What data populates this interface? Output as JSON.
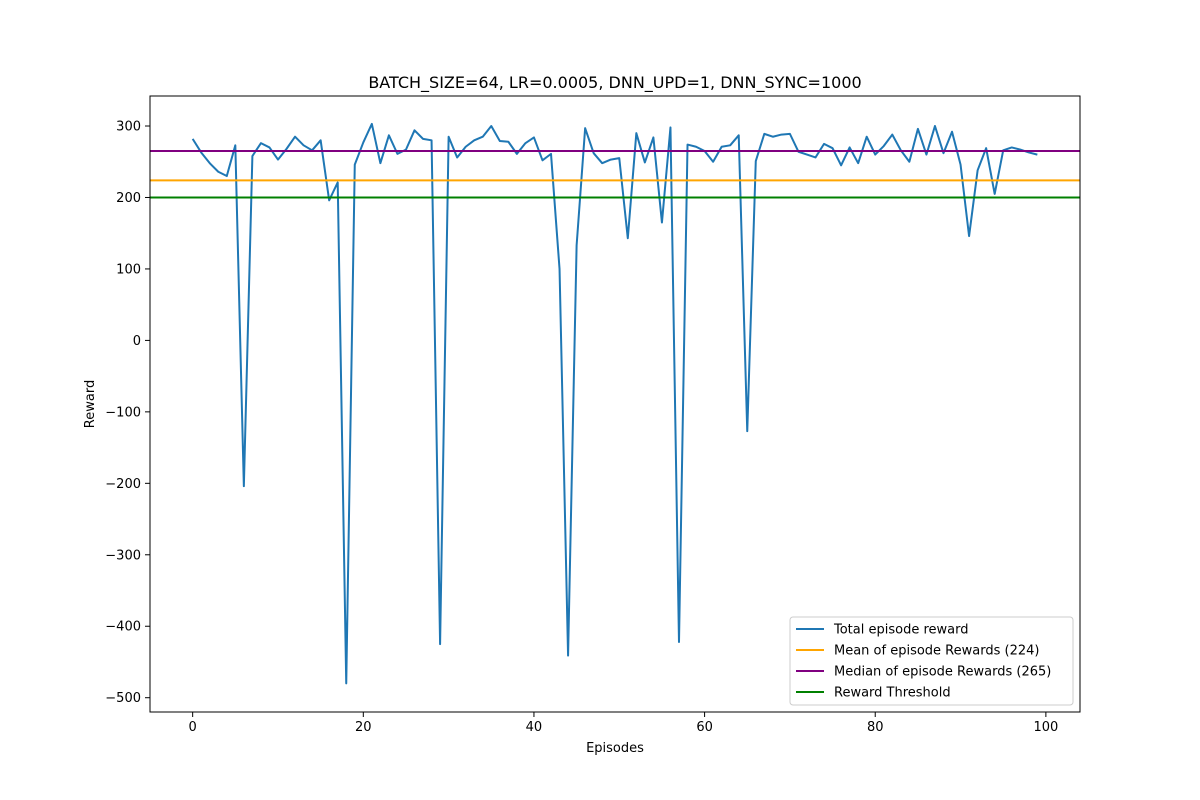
{
  "chart_data": {
    "type": "line",
    "title": "BATCH_SIZE=64, LR=0.0005, DNN_UPD=1, DNN_SYNC=1000",
    "xlabel": "Episodes",
    "ylabel": "Reward",
    "xlim": [
      -5,
      104
    ],
    "ylim": [
      -520,
      342
    ],
    "xticks": [
      0,
      20,
      40,
      60,
      80,
      100
    ],
    "yticks": [
      -500,
      -400,
      -300,
      -200,
      -100,
      0,
      100,
      200,
      300
    ],
    "grid": false,
    "legend_position": "bottom-right",
    "series": [
      {
        "name": "Total episode reward",
        "color": "#1f77b4",
        "x": [
          0,
          1,
          2,
          3,
          4,
          5,
          6,
          7,
          8,
          9,
          10,
          11,
          12,
          13,
          14,
          15,
          16,
          17,
          18,
          19,
          20,
          21,
          22,
          23,
          24,
          25,
          26,
          27,
          28,
          29,
          30,
          31,
          32,
          33,
          34,
          35,
          36,
          37,
          38,
          39,
          40,
          41,
          42,
          43,
          44,
          45,
          46,
          47,
          48,
          49,
          50,
          51,
          52,
          53,
          54,
          55,
          56,
          57,
          58,
          59,
          60,
          61,
          62,
          63,
          64,
          65,
          66,
          67,
          68,
          69,
          70,
          71,
          72,
          73,
          74,
          75,
          76,
          77,
          78,
          79,
          80,
          81,
          82,
          83,
          84,
          85,
          86,
          87,
          88,
          89,
          90,
          91,
          92,
          93,
          94,
          95,
          96,
          97,
          98,
          99
        ],
        "y": [
          282,
          263,
          248,
          236,
          230,
          273,
          -204,
          258,
          276,
          270,
          253,
          268,
          285,
          273,
          266,
          280,
          196,
          221,
          -480,
          246,
          277,
          303,
          248,
          287,
          261,
          267,
          294,
          282,
          280,
          -425,
          285,
          256,
          271,
          280,
          285,
          300,
          279,
          278,
          261,
          276,
          284,
          252,
          261,
          100,
          -441,
          133,
          297,
          262,
          248,
          253,
          255,
          143,
          290,
          249,
          284,
          165,
          298,
          -422,
          274,
          271,
          265,
          250,
          271,
          273,
          287,
          -127,
          251,
          289,
          285,
          288,
          289,
          264,
          260,
          256,
          275,
          269,
          245,
          270,
          248,
          285,
          260,
          272,
          288,
          266,
          250,
          296,
          260,
          300,
          262,
          292,
          246,
          146,
          238,
          269,
          205,
          266,
          270,
          267,
          263,
          260
        ]
      },
      {
        "name": "Mean of episode Rewards (224)",
        "color": "#ffa500",
        "value": 224
      },
      {
        "name": "Median of episode Rewards (265)",
        "color": "#800080",
        "value": 265
      },
      {
        "name": "Reward Threshold",
        "color": "#008000",
        "value": 200
      }
    ]
  }
}
